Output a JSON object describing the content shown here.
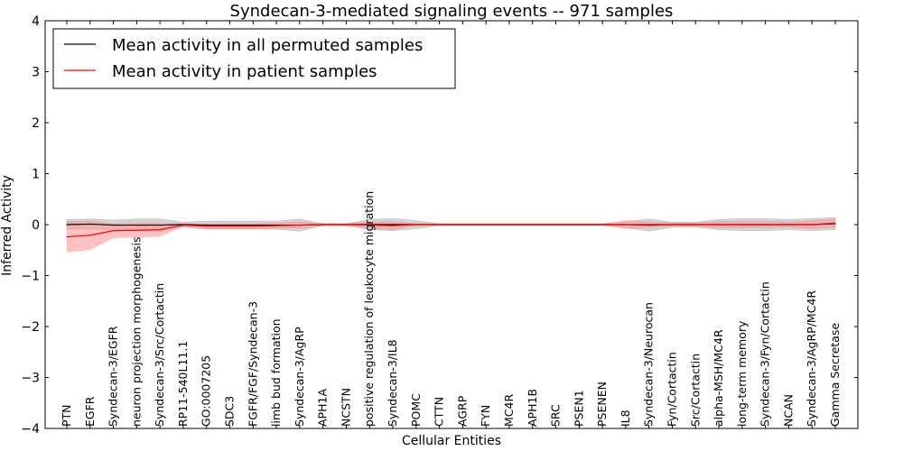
{
  "chart_data": {
    "type": "line",
    "title": "Syndecan-3-mediated signaling events -- 971 samples",
    "xlabel": "Cellular Entities",
    "ylabel": "Inferred Activity",
    "ylim": [
      -4,
      4
    ],
    "yticks": [
      -4,
      -3,
      -2,
      -1,
      0,
      1,
      2,
      3,
      4
    ],
    "ytick_labels": [
      "−4",
      "−3",
      "−2",
      "−1",
      "0",
      "1",
      "2",
      "3",
      "4"
    ],
    "categories": [
      "PTN",
      "EGFR",
      "Syndecan-3/EGFR",
      "neuron projection morphogenesis",
      "Syndecan-3/Src/Cortactin",
      "RP11-540L11.1",
      "GO:0007205",
      "SDC3",
      "FGFR/FGF/Syndecan-3",
      "limb bud formation",
      "Syndecan-3/AgRP",
      "APH1A",
      "NCSTN",
      "positive regulation of leukocyte migration",
      "Syndecan-3/IL8",
      "POMC",
      "CTTN",
      "AGRP",
      "FYN",
      "MC4R",
      "APH1B",
      "SRC",
      "PSEN1",
      "PSENEN",
      "IL8",
      "Syndecan-3/Neurocan",
      "Fyn/Cortactin",
      "Src/Cortactin",
      "alpha-MSH/MC4R",
      "long-term memory",
      "Syndecan-3/Fyn/Cortactin",
      "NCAN",
      "Syndecan-3/AgRP/MC4R",
      "Gamma Secretase"
    ],
    "legend": {
      "location": "top-left",
      "entries": [
        "Mean activity in all permuted samples",
        "Mean activity in patient samples"
      ]
    },
    "series": [
      {
        "name": "Mean activity in all permuted samples",
        "color": "#000000",
        "band_color": "#b0b0b0",
        "values": [
          0.0,
          0.01,
          -0.01,
          -0.01,
          -0.01,
          0.0,
          -0.01,
          -0.01,
          -0.01,
          -0.01,
          -0.01,
          0.0,
          0.0,
          0.0,
          0.0,
          0.0,
          0.0,
          0.0,
          0.0,
          0.0,
          0.0,
          0.0,
          0.0,
          0.0,
          0.0,
          -0.01,
          0.0,
          0.0,
          0.0,
          0.0,
          0.0,
          0.0,
          0.0,
          0.02
        ],
        "band_half_width": [
          0.1,
          0.1,
          0.1,
          0.12,
          0.12,
          0.05,
          0.08,
          0.08,
          0.08,
          0.08,
          0.12,
          0.02,
          0.02,
          0.1,
          0.12,
          0.08,
          0.02,
          0.02,
          0.02,
          0.02,
          0.02,
          0.02,
          0.02,
          0.02,
          0.06,
          0.12,
          0.05,
          0.05,
          0.1,
          0.12,
          0.12,
          0.1,
          0.12,
          0.12
        ]
      },
      {
        "name": "Mean activity in patient samples",
        "color": "#ff0000",
        "band_color": "#ff9999",
        "values": [
          -0.24,
          -0.21,
          -0.12,
          -0.11,
          -0.1,
          -0.01,
          -0.03,
          -0.03,
          -0.03,
          -0.02,
          -0.01,
          0.0,
          0.0,
          -0.01,
          -0.02,
          0.0,
          0.0,
          0.0,
          0.0,
          0.0,
          0.0,
          0.0,
          0.0,
          0.0,
          0.0,
          0.0,
          0.0,
          0.0,
          0.0,
          0.0,
          0.0,
          0.0,
          0.0,
          0.03
        ],
        "band_half_width": [
          0.3,
          0.28,
          0.14,
          0.14,
          0.13,
          0.02,
          0.05,
          0.05,
          0.05,
          0.05,
          0.06,
          0.02,
          0.02,
          0.06,
          0.08,
          0.02,
          0.01,
          0.01,
          0.01,
          0.01,
          0.01,
          0.01,
          0.01,
          0.01,
          0.08,
          0.05,
          0.03,
          0.03,
          0.06,
          0.06,
          0.06,
          0.05,
          0.08,
          0.08
        ]
      }
    ]
  }
}
